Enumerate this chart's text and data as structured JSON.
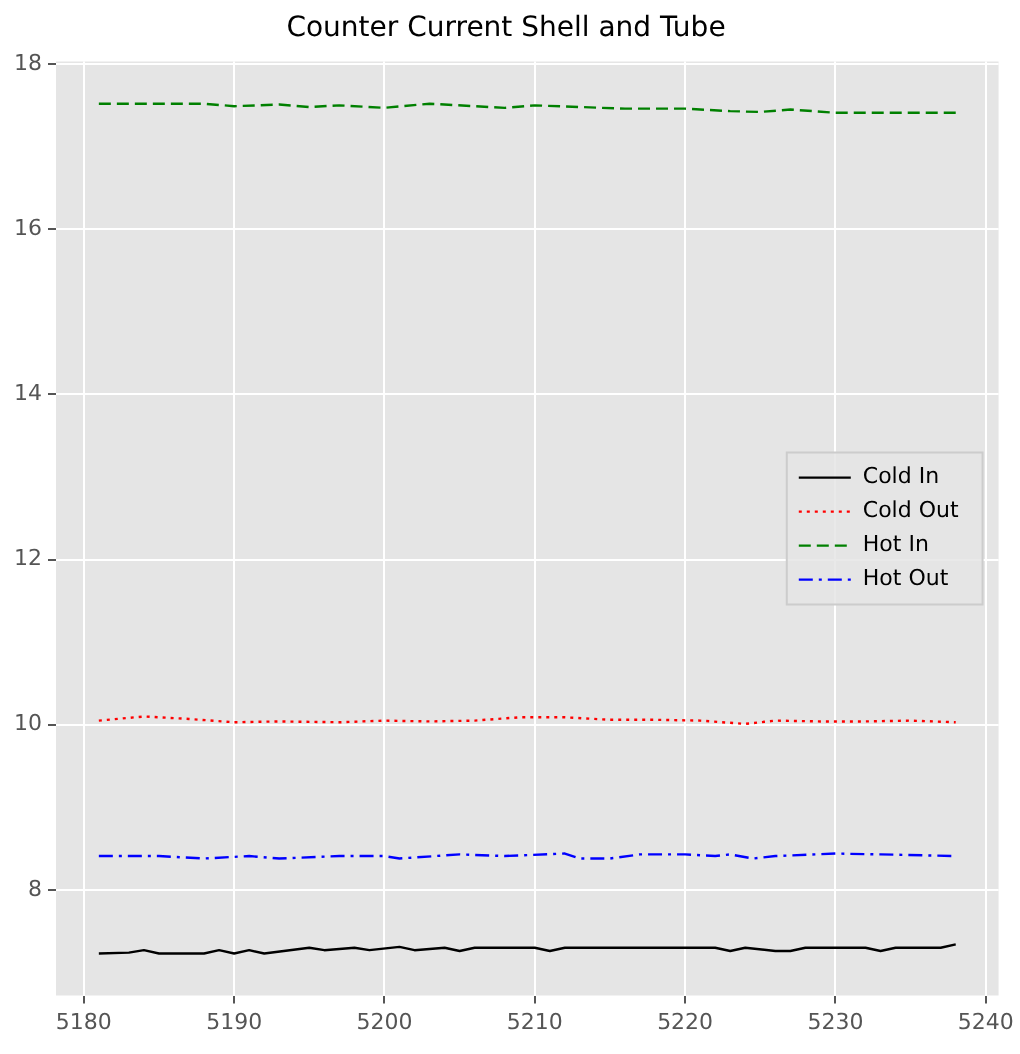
{
  "chart_data": {
    "type": "line",
    "title": "Counter Current Shell and Tube",
    "xlim": [
      5178.15,
      5240.85
    ],
    "xticks": [
      5180,
      5190,
      5200,
      5210,
      5220,
      5230,
      5240
    ],
    "ylim": [
      6.72,
      18.03
    ],
    "yticks": [
      8,
      10,
      12,
      14,
      16,
      18
    ],
    "grid": true,
    "legend": "right",
    "marker": "none",
    "series": [
      {
        "name": "Cold In",
        "color": "#000000",
        "line_style": "solid",
        "x": [
          5181,
          5183,
          5184,
          5185,
          5188,
          5189,
          5190,
          5191,
          5192,
          5195,
          5196,
          5198,
          5199,
          5201,
          5202,
          5204,
          5205,
          5206,
          5210,
          5211,
          5212,
          5222,
          5223,
          5224,
          5226,
          5227,
          5228,
          5232,
          5233,
          5234,
          5237,
          5238
        ],
        "values": [
          7.23,
          7.24,
          7.27,
          7.23,
          7.23,
          7.27,
          7.23,
          7.27,
          7.23,
          7.3,
          7.27,
          7.3,
          7.27,
          7.31,
          7.27,
          7.3,
          7.26,
          7.3,
          7.3,
          7.26,
          7.3,
          7.3,
          7.26,
          7.3,
          7.26,
          7.26,
          7.3,
          7.3,
          7.26,
          7.3,
          7.3,
          7.34
        ]
      },
      {
        "name": "Cold Out",
        "color": "#ff0000",
        "line_style": "dotted",
        "x": [
          5181,
          5184,
          5187,
          5190,
          5193,
          5197,
          5200,
          5203,
          5206,
          5209,
          5212,
          5215,
          5218,
          5221,
          5224,
          5226,
          5229,
          5232,
          5235,
          5238
        ],
        "values": [
          10.05,
          10.1,
          10.07,
          10.03,
          10.04,
          10.03,
          10.05,
          10.04,
          10.05,
          10.09,
          10.09,
          10.06,
          10.06,
          10.05,
          10.01,
          10.05,
          10.04,
          10.04,
          10.05,
          10.03
        ]
      },
      {
        "name": "Hot In",
        "color": "#008000",
        "line_style": "dashed",
        "x": [
          5181,
          5188,
          5190,
          5193,
          5195,
          5197,
          5200,
          5203,
          5206,
          5208,
          5210,
          5213,
          5216,
          5220,
          5223,
          5225,
          5227,
          5230,
          5238
        ],
        "values": [
          17.52,
          17.52,
          17.49,
          17.51,
          17.48,
          17.5,
          17.47,
          17.52,
          17.49,
          17.47,
          17.5,
          17.48,
          17.46,
          17.46,
          17.43,
          17.42,
          17.45,
          17.41,
          17.41
        ]
      },
      {
        "name": "Hot Out",
        "color": "#0000ff",
        "line_style": "dashdot",
        "x": [
          5181,
          5185,
          5188,
          5191,
          5193,
          5197,
          5200,
          5201,
          5205,
          5208,
          5212,
          5213,
          5215,
          5217,
          5220,
          5222,
          5223,
          5224.5,
          5226,
          5230,
          5233,
          5238
        ],
        "values": [
          8.41,
          8.41,
          8.38,
          8.41,
          8.38,
          8.41,
          8.41,
          8.38,
          8.43,
          8.41,
          8.44,
          8.38,
          8.38,
          8.43,
          8.43,
          8.41,
          8.43,
          8.38,
          8.41,
          8.44,
          8.43,
          8.41
        ]
      }
    ]
  }
}
